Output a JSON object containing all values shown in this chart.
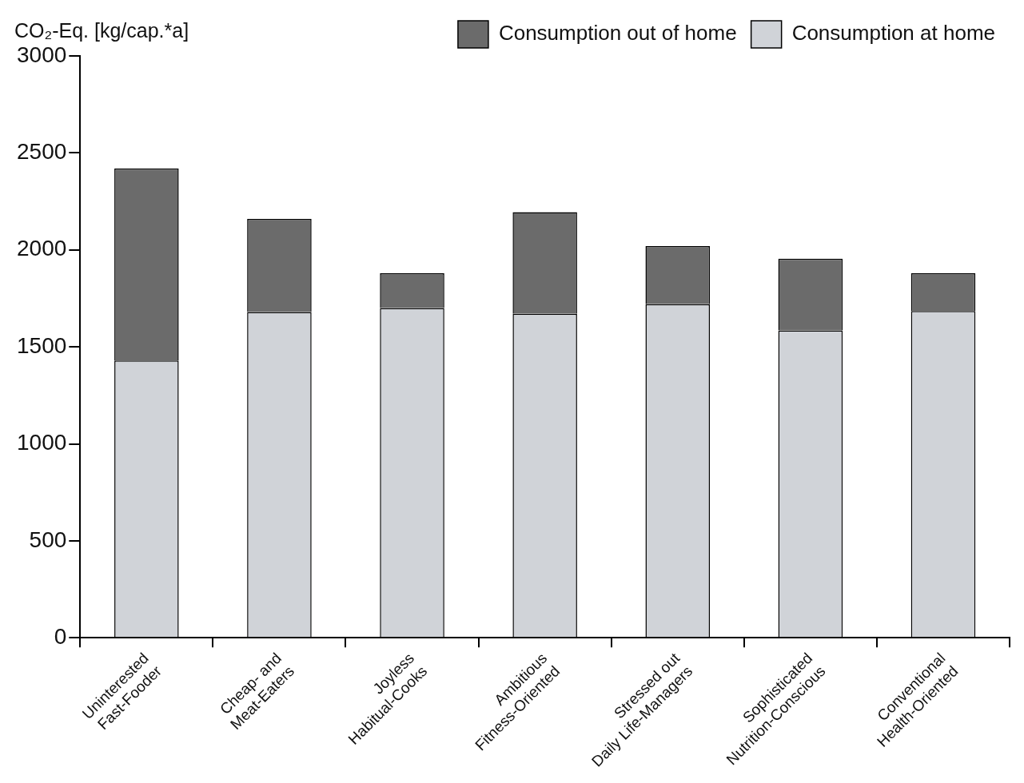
{
  "chart_data": {
    "type": "bar",
    "ylabel": "CO₂-Eq. [kg/cap.*a]",
    "stacked": true,
    "categories": [
      "Uninterested\nFast-Fooder",
      "Cheap- and\nMeat-Eaters",
      "Joyless\nHabitual-Cooks",
      "Ambitious\nFitness-Oriented",
      "Stressed out\nDaily Life-Managers",
      "Sophisticated\nNutrition-Conscious",
      "Conventional\nHealth-Oriented"
    ],
    "series": [
      {
        "name": "Consumption at home",
        "color": "#d0d3d8",
        "values": [
          1430,
          1680,
          1700,
          1670,
          1720,
          1585,
          1685
        ]
      },
      {
        "name": "Consumption out of home",
        "color": "#6b6b6b",
        "values": [
          990,
          480,
          180,
          525,
          300,
          370,
          195
        ]
      }
    ],
    "ylim": [
      0,
      3000
    ],
    "yticks": [
      0,
      500,
      1000,
      1500,
      2000,
      2500,
      3000
    ],
    "grid": false,
    "legend": "top right"
  }
}
